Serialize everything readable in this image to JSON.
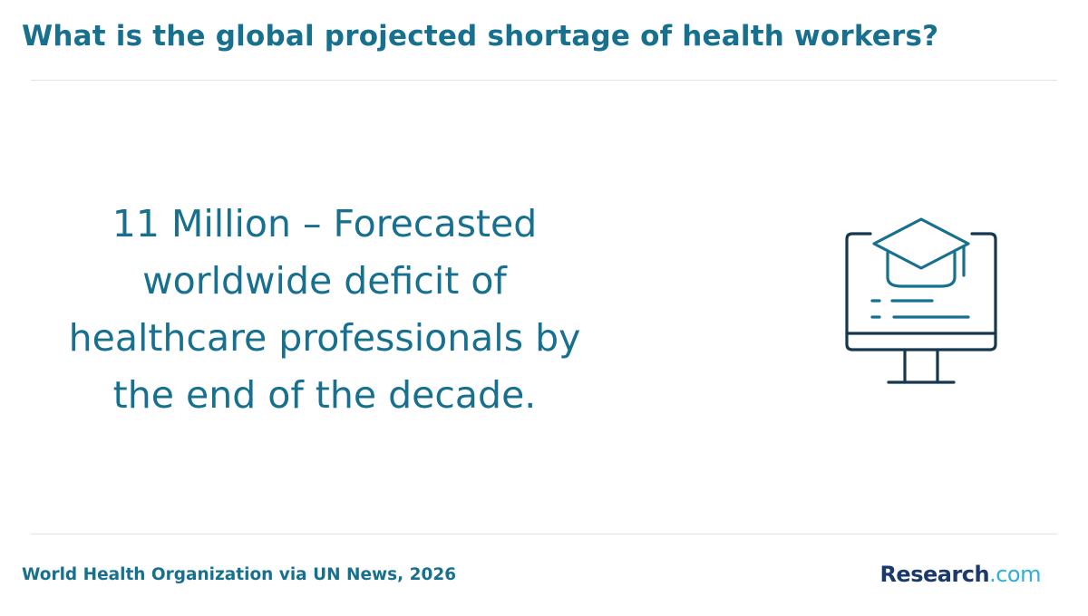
{
  "header": {
    "title": "What is the global projected shortage of health workers?"
  },
  "main": {
    "stat_text": "11 Million – Forecasted worldwide deficit of healthcare professionals by the end of the decade.",
    "icon": "graduation-cap-monitor-icon"
  },
  "footer": {
    "source": "World Health Organization via UN News, 2026",
    "brand_name": "Research",
    "brand_tld": ".com"
  },
  "colors": {
    "title": "#18708f",
    "icon_stroke": "#15384f",
    "brand_name": "#1b3a6b",
    "brand_tld": "#2bb0d8"
  }
}
